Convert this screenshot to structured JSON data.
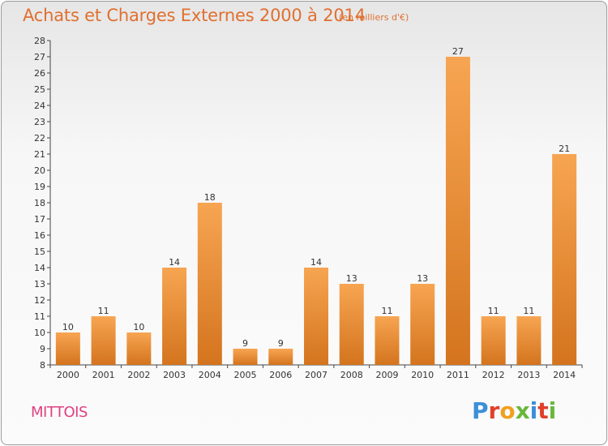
{
  "header": {
    "title": "Achats et Charges Externes 2000 à 2014",
    "unit_note": "(en milliers d'€)"
  },
  "footer": {
    "commune": "MITTOIS",
    "logo": "Proxiti"
  },
  "colors": {
    "title": "#e07030",
    "commune": "#e04080",
    "bar_top": "#f7a552",
    "bar_bottom": "#d4741e"
  },
  "chart_data": {
    "type": "bar",
    "categories": [
      "2000",
      "2001",
      "2002",
      "2003",
      "2004",
      "2005",
      "2006",
      "2007",
      "2008",
      "2009",
      "2010",
      "2011",
      "2012",
      "2013",
      "2014"
    ],
    "values": [
      10,
      11,
      10,
      14,
      18,
      9,
      9,
      14,
      13,
      11,
      13,
      27,
      11,
      11,
      21
    ],
    "title": "Achats et Charges Externes 2000 à 2014",
    "ylim": [
      8,
      28
    ],
    "yticks": [
      8,
      9,
      10,
      11,
      12,
      13,
      14,
      15,
      16,
      17,
      18,
      19,
      20,
      21,
      22,
      23,
      24,
      25,
      26,
      27,
      28
    ],
    "grid": false,
    "data_labels": true
  }
}
